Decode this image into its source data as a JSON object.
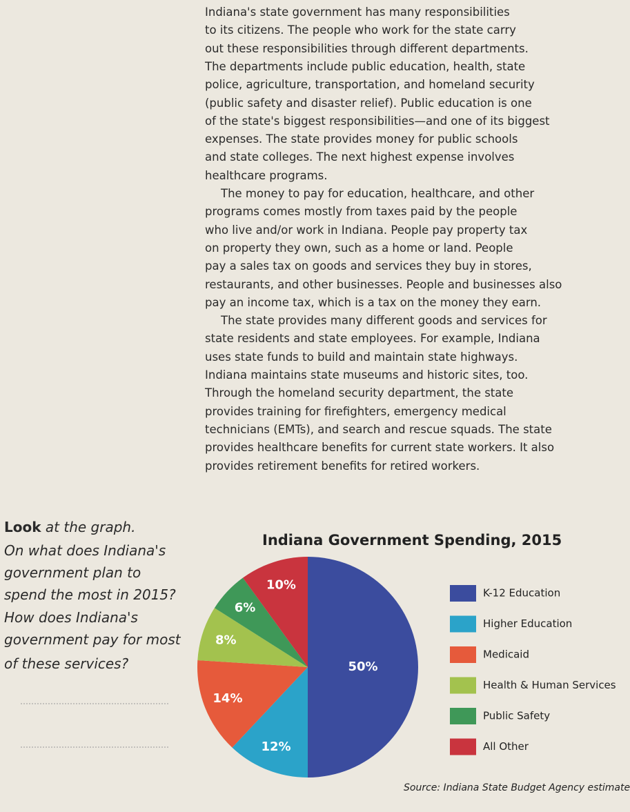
{
  "body": {
    "paragraphs": [
      [
        "Indiana's state government has many responsibilities",
        "to its citizens. The people who work for the state carry",
        "out these responsibilities through different departments.",
        "The departments include public education, health, state",
        "police, agriculture, transportation, and homeland security",
        "(public safety and disaster relief). Public education is one",
        "of the state's biggest responsibilities—and one of its biggest",
        "expenses. The state provides money for public schools",
        "and state colleges. The next highest expense involves",
        "healthcare programs."
      ],
      [
        "The money to pay for education, healthcare, and other",
        "programs comes mostly from taxes paid by the people",
        "who live and/or work in Indiana. People pay property tax",
        "on property they own, such as a home or land. People",
        "pay a sales tax on goods and services they buy in stores,",
        "restaurants, and other businesses. People and businesses also",
        "pay an income tax, which is a tax on the money they earn."
      ],
      [
        "The state provides many different goods and services for",
        "state residents and state employees. For example, Indiana",
        "uses state funds to build and maintain state highways.",
        "Indiana maintains state museums and historic sites, too.",
        "Through the homeland security department, the state",
        "provides training for firefighters, emergency medical",
        "technicians (EMTs), and search and rescue squads. The state",
        "provides healthcare benefits for current state workers. It also",
        "provides retirement benefits for retired workers."
      ]
    ]
  },
  "sidebar": {
    "lead": "Look",
    "first": "at the graph.",
    "lines": [
      "On what does Indiana's",
      "government plan to",
      "spend the most in 2015?",
      "How does Indiana's",
      "government pay for most",
      "of these services?"
    ]
  },
  "chart_data": {
    "type": "pie",
    "title": "Indiana Government Spending, 2015",
    "categories": [
      "K-12 Education",
      "Higher Education",
      "Medicaid",
      "Health & Human Services",
      "Public Safety",
      "All Other"
    ],
    "values": [
      50,
      12,
      14,
      8,
      6,
      10
    ],
    "value_labels": [
      "50%",
      "12%",
      "14%",
      "8%",
      "6%",
      "10%"
    ],
    "colors": [
      "#3b4c9e",
      "#2ba3c9",
      "#e65a3b",
      "#a3c24e",
      "#3f9858",
      "#c9343e"
    ],
    "source": "Source: Indiana State Budget Agency estimate"
  }
}
